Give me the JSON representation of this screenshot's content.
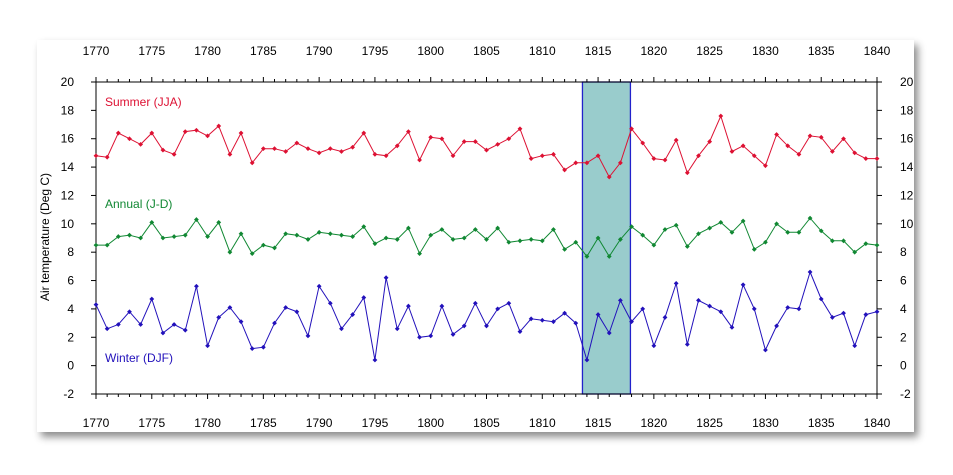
{
  "chart_data": {
    "type": "line",
    "ylabel": "Air temperature (Deg C)",
    "xlim": [
      1770,
      1840
    ],
    "ylim": [
      -2,
      20
    ],
    "xticks": [
      1770,
      1775,
      1780,
      1785,
      1790,
      1795,
      1800,
      1805,
      1810,
      1815,
      1820,
      1825,
      1830,
      1835,
      1840
    ],
    "yticks": [
      -2,
      0,
      2,
      4,
      6,
      8,
      10,
      12,
      14,
      16,
      18,
      20
    ],
    "highlight": {
      "x0": 1813.6,
      "x1": 1817.9,
      "color": "#99cccc"
    },
    "series": [
      {
        "name": "Summer (JJA)",
        "color": "#dd1133",
        "x": [
          1770,
          1771,
          1772,
          1773,
          1774,
          1775,
          1776,
          1777,
          1778,
          1779,
          1780,
          1781,
          1782,
          1783,
          1784,
          1785,
          1786,
          1787,
          1788,
          1789,
          1790,
          1791,
          1792,
          1793,
          1794,
          1795,
          1796,
          1797,
          1798,
          1799,
          1800,
          1801,
          1802,
          1803,
          1804,
          1805,
          1806,
          1807,
          1808,
          1809,
          1810,
          1811,
          1812,
          1813,
          1814,
          1815,
          1816,
          1817,
          1818,
          1819,
          1820,
          1821,
          1822,
          1823,
          1824,
          1825,
          1826,
          1827,
          1828,
          1829,
          1830,
          1831,
          1832,
          1833,
          1834,
          1835,
          1836,
          1837,
          1838,
          1839,
          1840
        ],
        "y": [
          14.8,
          14.7,
          16.4,
          16.0,
          15.6,
          16.4,
          15.2,
          14.9,
          16.5,
          16.6,
          16.2,
          16.9,
          14.9,
          16.4,
          14.3,
          15.3,
          15.3,
          15.1,
          15.7,
          15.3,
          15.0,
          15.3,
          15.1,
          15.4,
          16.4,
          14.9,
          14.8,
          15.5,
          16.5,
          14.5,
          16.1,
          16.0,
          14.8,
          15.8,
          15.8,
          15.2,
          15.6,
          16.0,
          16.7,
          14.6,
          14.8,
          14.9,
          13.8,
          14.3,
          14.3,
          14.8,
          13.3,
          14.3,
          16.7,
          15.7,
          14.6,
          14.5,
          15.9,
          13.6,
          14.8,
          15.8,
          17.6,
          15.1,
          15.5,
          14.8,
          14.1,
          16.3,
          15.5,
          14.9,
          16.2,
          16.1,
          15.1,
          16.0,
          15.0,
          14.6,
          14.6
        ]
      },
      {
        "name": "Annual (J-D)",
        "color": "#118833",
        "x": [
          1770,
          1771,
          1772,
          1773,
          1774,
          1775,
          1776,
          1777,
          1778,
          1779,
          1780,
          1781,
          1782,
          1783,
          1784,
          1785,
          1786,
          1787,
          1788,
          1789,
          1790,
          1791,
          1792,
          1793,
          1794,
          1795,
          1796,
          1797,
          1798,
          1799,
          1800,
          1801,
          1802,
          1803,
          1804,
          1805,
          1806,
          1807,
          1808,
          1809,
          1810,
          1811,
          1812,
          1813,
          1814,
          1815,
          1816,
          1817,
          1818,
          1819,
          1820,
          1821,
          1822,
          1823,
          1824,
          1825,
          1826,
          1827,
          1828,
          1829,
          1830,
          1831,
          1832,
          1833,
          1834,
          1835,
          1836,
          1837,
          1838,
          1839,
          1840
        ],
        "y": [
          8.5,
          8.5,
          9.1,
          9.2,
          9.0,
          10.1,
          9.0,
          9.1,
          9.2,
          10.3,
          9.1,
          10.1,
          8.0,
          9.3,
          7.9,
          8.5,
          8.3,
          9.3,
          9.2,
          8.9,
          9.4,
          9.3,
          9.2,
          9.1,
          9.8,
          8.6,
          9.0,
          8.9,
          9.7,
          7.9,
          9.2,
          9.6,
          8.9,
          9.0,
          9.6,
          8.9,
          9.7,
          8.7,
          8.8,
          8.9,
          8.8,
          9.6,
          8.2,
          8.7,
          7.7,
          9.0,
          7.7,
          8.9,
          9.8,
          9.2,
          8.5,
          9.6,
          9.9,
          8.4,
          9.3,
          9.7,
          10.1,
          9.4,
          10.2,
          8.2,
          8.7,
          10.0,
          9.4,
          9.4,
          10.4,
          9.5,
          8.8,
          8.8,
          8.0,
          8.6,
          8.5
        ]
      },
      {
        "name": "Winter (DJF)",
        "color": "#2211bb",
        "x": [
          1770,
          1771,
          1772,
          1773,
          1774,
          1775,
          1776,
          1777,
          1778,
          1779,
          1780,
          1781,
          1782,
          1783,
          1784,
          1785,
          1786,
          1787,
          1788,
          1789,
          1790,
          1791,
          1792,
          1793,
          1794,
          1795,
          1796,
          1797,
          1798,
          1799,
          1800,
          1801,
          1802,
          1803,
          1804,
          1805,
          1806,
          1807,
          1808,
          1809,
          1810,
          1811,
          1812,
          1813,
          1814,
          1815,
          1816,
          1817,
          1818,
          1819,
          1820,
          1821,
          1822,
          1823,
          1824,
          1825,
          1826,
          1827,
          1828,
          1829,
          1830,
          1831,
          1832,
          1833,
          1834,
          1835,
          1836,
          1837,
          1838,
          1839,
          1840
        ],
        "y": [
          4.3,
          2.6,
          2.9,
          3.8,
          2.9,
          4.7,
          2.3,
          2.9,
          2.5,
          5.6,
          1.4,
          3.4,
          4.1,
          3.1,
          1.2,
          1.3,
          3.0,
          4.1,
          3.8,
          2.1,
          5.6,
          4.4,
          2.6,
          3.6,
          4.8,
          0.4,
          6.2,
          2.6,
          4.2,
          2.0,
          2.1,
          4.2,
          2.2,
          2.8,
          4.4,
          2.8,
          4.0,
          4.4,
          2.4,
          3.3,
          3.2,
          3.1,
          3.7,
          3.0,
          0.4,
          3.6,
          2.3,
          4.6,
          3.1,
          4.0,
          1.4,
          3.4,
          5.8,
          1.5,
          4.6,
          4.2,
          3.8,
          2.7,
          5.7,
          4.0,
          1.1,
          2.8,
          4.1,
          4.0,
          6.6,
          4.7,
          3.4,
          3.7,
          1.4,
          3.6,
          3.8
        ]
      }
    ]
  }
}
